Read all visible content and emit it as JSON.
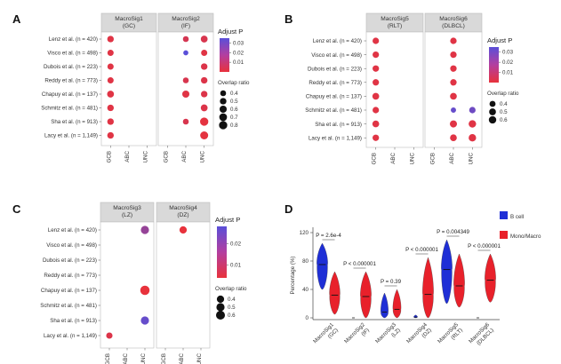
{
  "figure": {
    "panel_letters": [
      "A",
      "B",
      "C",
      "D"
    ]
  },
  "colors": {
    "high": "#e8323c",
    "low": "#5a4fd8",
    "bcell": "#1f2fd6",
    "mono": "#e8212b",
    "strip": "#d9d9d9",
    "panel_border": "#bdbdbd"
  },
  "chart_data": [
    {
      "type": "scatter",
      "panel": "A",
      "datasets": [
        "Lenz et al. (n = 420)",
        "Visco et al. (n = 498)",
        "Dubois et al. (n = 223)",
        "Reddy et al. (n = 773)",
        "Chapuy et al. (n = 137)",
        "Schmitz et al. (n = 481)",
        "Sha et al. (n = 913)",
        "Lacy et al. (n = 1,149)"
      ],
      "groups": [
        "GCB",
        "ABC",
        "UNC"
      ],
      "facets": [
        {
          "title": "MacroSig1",
          "subtitle": "(GC)",
          "points": [
            {
              "dataset": 0,
              "group": 0,
              "ratio": 0.5,
              "p": 0.002
            },
            {
              "dataset": 1,
              "group": 0,
              "ratio": 0.45,
              "p": 0.002
            },
            {
              "dataset": 2,
              "group": 0,
              "ratio": 0.45,
              "p": 0.002
            },
            {
              "dataset": 3,
              "group": 0,
              "ratio": 0.45,
              "p": 0.002
            },
            {
              "dataset": 4,
              "group": 0,
              "ratio": 0.55,
              "p": 0.002
            },
            {
              "dataset": 5,
              "group": 0,
              "ratio": 0.5,
              "p": 0.002
            },
            {
              "dataset": 6,
              "group": 0,
              "ratio": 0.5,
              "p": 0.002
            },
            {
              "dataset": 7,
              "group": 0,
              "ratio": 0.5,
              "p": 0.002
            }
          ]
        },
        {
          "title": "MacroSig2",
          "subtitle": "(IF)",
          "points": [
            {
              "dataset": 0,
              "group": 1,
              "ratio": 0.4,
              "p": 0.005
            },
            {
              "dataset": 0,
              "group": 2,
              "ratio": 0.55,
              "p": 0.004
            },
            {
              "dataset": 1,
              "group": 1,
              "ratio": 0.3,
              "p": 0.035
            },
            {
              "dataset": 1,
              "group": 2,
              "ratio": 0.45,
              "p": 0.002
            },
            {
              "dataset": 2,
              "group": 2,
              "ratio": 0.5,
              "p": 0.003
            },
            {
              "dataset": 3,
              "group": 1,
              "ratio": 0.4,
              "p": 0.004
            },
            {
              "dataset": 3,
              "group": 2,
              "ratio": 0.5,
              "p": 0.003
            },
            {
              "dataset": 4,
              "group": 1,
              "ratio": 0.6,
              "p": 0.002
            },
            {
              "dataset": 4,
              "group": 2,
              "ratio": 0.5,
              "p": 0.003
            },
            {
              "dataset": 5,
              "group": 2,
              "ratio": 0.55,
              "p": 0.003
            },
            {
              "dataset": 6,
              "group": 1,
              "ratio": 0.4,
              "p": 0.004
            },
            {
              "dataset": 6,
              "group": 2,
              "ratio": 0.8,
              "p": 0.001
            },
            {
              "dataset": 7,
              "group": 2,
              "ratio": 0.75,
              "p": 0.001
            }
          ]
        }
      ],
      "legend": {
        "color_title": "Adjust P",
        "color_ticks": [
          0.03,
          0.02,
          0.01
        ],
        "color_range": [
          0.0,
          0.035
        ],
        "size_title": "Overlap ratio",
        "size_ticks": [
          0.4,
          0.5,
          0.6,
          0.7,
          0.8
        ]
      }
    },
    {
      "type": "scatter",
      "panel": "B",
      "datasets": [
        "Lenz et al. (n = 420)",
        "Visco et al. (n = 498)",
        "Dubois et al. (n = 223)",
        "Reddy et al. (n = 773)",
        "Chapuy et al. (n = 137)",
        "Schmitz et al. (n = 481)",
        "Sha et al. (n = 913)",
        "Lacy et al. (n = 1,149)"
      ],
      "groups": [
        "GCB",
        "ABC",
        "UNC"
      ],
      "facets": [
        {
          "title": "MacroSig5",
          "subtitle": "(RLT)",
          "points": [
            {
              "dataset": 0,
              "group": 0,
              "ratio": 0.45,
              "p": 0.002
            },
            {
              "dataset": 1,
              "group": 0,
              "ratio": 0.45,
              "p": 0.002
            },
            {
              "dataset": 2,
              "group": 0,
              "ratio": 0.45,
              "p": 0.002
            },
            {
              "dataset": 3,
              "group": 0,
              "ratio": 0.45,
              "p": 0.002
            },
            {
              "dataset": 4,
              "group": 0,
              "ratio": 0.5,
              "p": 0.002
            },
            {
              "dataset": 5,
              "group": 0,
              "ratio": 0.45,
              "p": 0.002
            },
            {
              "dataset": 6,
              "group": 0,
              "ratio": 0.5,
              "p": 0.002
            },
            {
              "dataset": 7,
              "group": 0,
              "ratio": 0.45,
              "p": 0.002
            }
          ]
        },
        {
          "title": "MacroSig6",
          "subtitle": "(DLBCL)",
          "points": [
            {
              "dataset": 0,
              "group": 1,
              "ratio": 0.45,
              "p": 0.002
            },
            {
              "dataset": 1,
              "group": 1,
              "ratio": 0.45,
              "p": 0.002
            },
            {
              "dataset": 2,
              "group": 1,
              "ratio": 0.45,
              "p": 0.002
            },
            {
              "dataset": 3,
              "group": 1,
              "ratio": 0.45,
              "p": 0.002
            },
            {
              "dataset": 4,
              "group": 1,
              "ratio": 0.5,
              "p": 0.002
            },
            {
              "dataset": 5,
              "group": 1,
              "ratio": 0.3,
              "p": 0.032
            },
            {
              "dataset": 5,
              "group": 2,
              "ratio": 0.45,
              "p": 0.03
            },
            {
              "dataset": 6,
              "group": 1,
              "ratio": 0.55,
              "p": 0.002
            },
            {
              "dataset": 6,
              "group": 2,
              "ratio": 0.6,
              "p": 0.002
            },
            {
              "dataset": 7,
              "group": 1,
              "ratio": 0.5,
              "p": 0.002
            },
            {
              "dataset": 7,
              "group": 2,
              "ratio": 0.6,
              "p": 0.002
            }
          ]
        }
      ],
      "legend": {
        "color_title": "Adjust P",
        "color_ticks": [
          0.03,
          0.02,
          0.01
        ],
        "color_range": [
          0.0,
          0.035
        ],
        "size_title": "Overlap ratio",
        "size_ticks": [
          0.4,
          0.5,
          0.6
        ]
      }
    },
    {
      "type": "scatter",
      "panel": "C",
      "datasets": [
        "Lenz et al. (n = 420)",
        "Visco et al. (n = 498)",
        "Dubois et al. (n = 223)",
        "Reddy et al. (n = 773)",
        "Chapuy et al. (n = 137)",
        "Schmitz et al. (n = 481)",
        "Sha et al. (n = 913)",
        "Lacy et al. (n = 1,149)"
      ],
      "groups": [
        "GCB",
        "ABC",
        "UNC"
      ],
      "facets": [
        {
          "title": "MacroSig3",
          "subtitle": "(LZ)",
          "points": [
            {
              "dataset": 0,
              "group": 2,
              "ratio": 0.5,
              "p": 0.018
            },
            {
              "dataset": 4,
              "group": 2,
              "ratio": 0.65,
              "p": 0.004
            },
            {
              "dataset": 6,
              "group": 2,
              "ratio": 0.5,
              "p": 0.026
            },
            {
              "dataset": 7,
              "group": 0,
              "ratio": 0.3,
              "p": 0.006
            }
          ]
        },
        {
          "title": "MacroSig4",
          "subtitle": "(DZ)",
          "points": [
            {
              "dataset": 0,
              "group": 1,
              "ratio": 0.4,
              "p": 0.004
            }
          ]
        }
      ],
      "legend": {
        "color_title": "Adjust P",
        "color_ticks": [
          0.02,
          0.01
        ],
        "color_range": [
          0.004,
          0.028
        ],
        "size_title": "Overlap ratio",
        "size_ticks": [
          0.4,
          0.5,
          0.6
        ]
      }
    },
    {
      "type": "violin",
      "panel": "D",
      "ylabel": "Percentage (%)",
      "ylim": [
        0,
        120
      ],
      "yticks": [
        0,
        40,
        80,
        120
      ],
      "categories": [
        {
          "title": "MacroSig1",
          "subtitle": "(GC)"
        },
        {
          "title": "MacroSig2",
          "subtitle": "(IF)"
        },
        {
          "title": "MacroSig3",
          "subtitle": "(LZ)"
        },
        {
          "title": "MacroSig4",
          "subtitle": "(DZ)"
        },
        {
          "title": "MacroSig5",
          "subtitle": "(RLT)"
        },
        {
          "title": "MacroSig6",
          "subtitle": "(DLBCL)"
        }
      ],
      "series": [
        {
          "name": "B cell",
          "color": "#1f2fd6",
          "medians": [
            75,
            0,
            8,
            1,
            68,
            0
          ],
          "ranges": [
            [
              40,
              105
            ],
            [
              0,
              1
            ],
            [
              0,
              35
            ],
            [
              0,
              4
            ],
            [
              20,
              110
            ],
            [
              0,
              1
            ]
          ]
        },
        {
          "name": "Mono/Macro",
          "color": "#e8212b",
          "medians": [
            32,
            30,
            12,
            33,
            45,
            53
          ],
          "ranges": [
            [
              5,
              65
            ],
            [
              0,
              65
            ],
            [
              0,
              40
            ],
            [
              0,
              85
            ],
            [
              15,
              90
            ],
            [
              22,
              90
            ]
          ]
        }
      ],
      "annotations": [
        "P = 2.6e-4",
        "P < 0.000001",
        "P = 0.39",
        "P < 0.000001",
        "P = 0.004349",
        "P < 0.000001"
      ]
    }
  ]
}
